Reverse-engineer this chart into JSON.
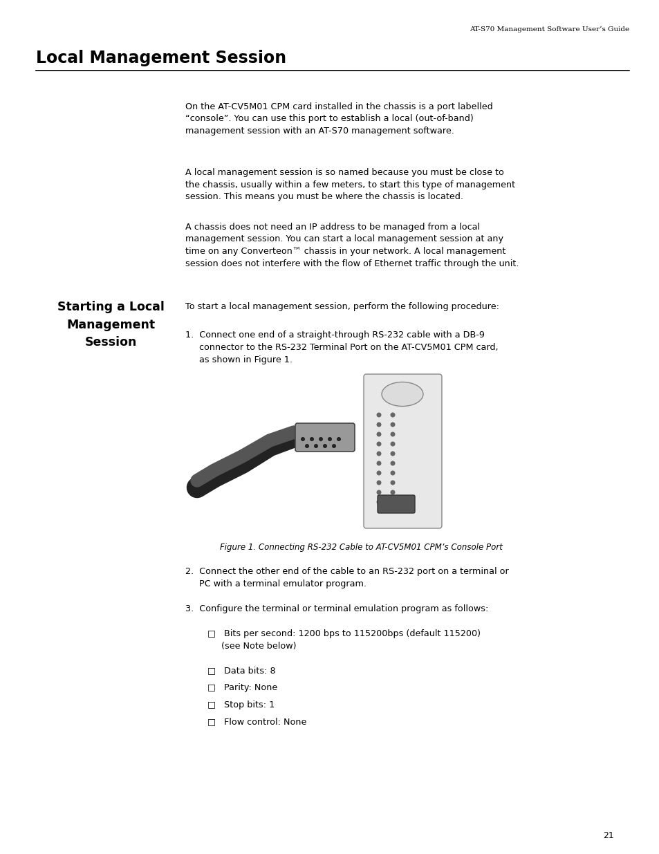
{
  "background_color": "#ffffff",
  "header_text": "AT-S70 Management Software User’s Guide",
  "header_fontsize": 7.5,
  "header_color": "#000000",
  "title": "Local Management Session",
  "title_fontsize": 17,
  "title_bold": true,
  "body_fontsize": 9.2,
  "body_color": "#000000",
  "sidebar_title": "Starting a Local\nManagement\nSession",
  "sidebar_fontsize": 12.5,
  "paragraph1": "On the AT-CV5M01 CPM card installed in the chassis is a port labelled\n“console”. You can use this port to establish a local (out-of-band)\nmanagement session with an AT-S70 management software.",
  "paragraph2": "A local management session is so named because you must be close to\nthe chassis, usually within a few meters, to start this type of management\nsession. This means you must be where the chassis is located.",
  "paragraph3": "A chassis does not need an IP address to be managed from a local\nmanagement session. You can start a local management session at any\ntime on any Converteon™ chassis in your network. A local management\nsession does not interfere with the flow of Ethernet traffic through the unit.",
  "starting_intro": "To start a local management session, perform the following procedure:",
  "step1_line1": "1.  Connect one end of a straight-through RS-232 cable with a DB-9",
  "step1_line2": "     connector to the RS-232 Terminal Port on the AT-CV5M01 CPM card,",
  "step1_line3": "     as shown in Figure 1.",
  "figure_caption": "Figure 1. Connecting RS-232 Cable to AT-CV5M01 CPM’s Console Port",
  "step2_line1": "2.  Connect the other end of the cable to an RS-232 port on a terminal or",
  "step2_line2": "     PC with a terminal emulator program.",
  "step3_line1": "3.  Configure the terminal or terminal emulation program as follows:",
  "bullet1_line1": "□   Bits per second: 1200 bps to 115200bps (default 115200)",
  "bullet1_line2": "     (see Note below)",
  "bullet2": "□   Data bits: 8",
  "bullet3": "□   Parity: None",
  "bullet4": "□   Stop bits: 1",
  "bullet5": "□   Flow control: None",
  "page_number": "21"
}
